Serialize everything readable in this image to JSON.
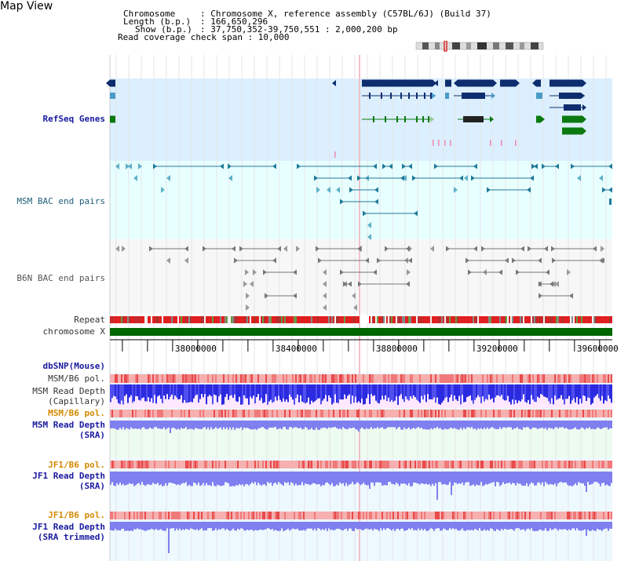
{
  "page": {
    "title": "Map View"
  },
  "header": {
    "chromosome_key": "Chromosome",
    "chromosome_val": ": Chromosome X, reference assembly (C57BL/6J) (Build 37)",
    "length_key": "Length (b.p.)",
    "length_val": ": 166,650,296",
    "show_key": "Show (b.p.)",
    "show_val": ": 37,750,352-39,750,551 : 2,000,200 bp",
    "coverage": "Read coverage check span : 10,000"
  },
  "tracks": {
    "refseq": "RefSeq Genes",
    "msm_bac": "MSM BAC end pairs",
    "b6n_bac": "B6N BAC end pairs",
    "repeat": "Repeat",
    "chromosome": "chromosome X",
    "dbsnp": "dbSNP(Mouse)",
    "msm_pol1": "MSM/B6 pol.",
    "msm_depth_cap1": "MSM Read Depth",
    "msm_depth_cap2": "(Capillary)",
    "msm_pol2": "MSM/B6 pol.",
    "msm_depth_sra1": "MSM Read Depth",
    "msm_depth_sra2": "(SRA)",
    "jf1_pol1": "JF1/B6 pol.",
    "jf1_depth1": "JF1 Read Depth",
    "jf1_depth2": "(SRA)",
    "jf1_pol2": "JF1/B6 pol.",
    "jf1_trim1": "JF1 Read Depth",
    "jf1_trim2": "(SRA trimmed)"
  },
  "axis": {
    "ticks": [
      {
        "pos": 38000000,
        "label": "38000000"
      },
      {
        "pos": 38400000,
        "label": "38400000"
      },
      {
        "pos": 38800000,
        "label": "38800000"
      },
      {
        "pos": 39200000,
        "label": "39200000"
      },
      {
        "pos": 39600000,
        "label": "39600000"
      }
    ],
    "start": 37750352,
    "end": 39750551
  },
  "colors": {
    "refseq_bg": "#dcefff",
    "msm_bg": "#e8ffff",
    "b6n_bg": "#f6f6f6",
    "refseq_dark": "#0d2d6e",
    "refseq_light": "#4a9bc8",
    "refseq_green": "#0a7a10",
    "repeat_red": "#e02020",
    "chrom_green": "#006600",
    "depth_blue": "#2222dd",
    "depth_soft": "#7f7ff0",
    "pol_pink": "#f4a0a0"
  }
}
